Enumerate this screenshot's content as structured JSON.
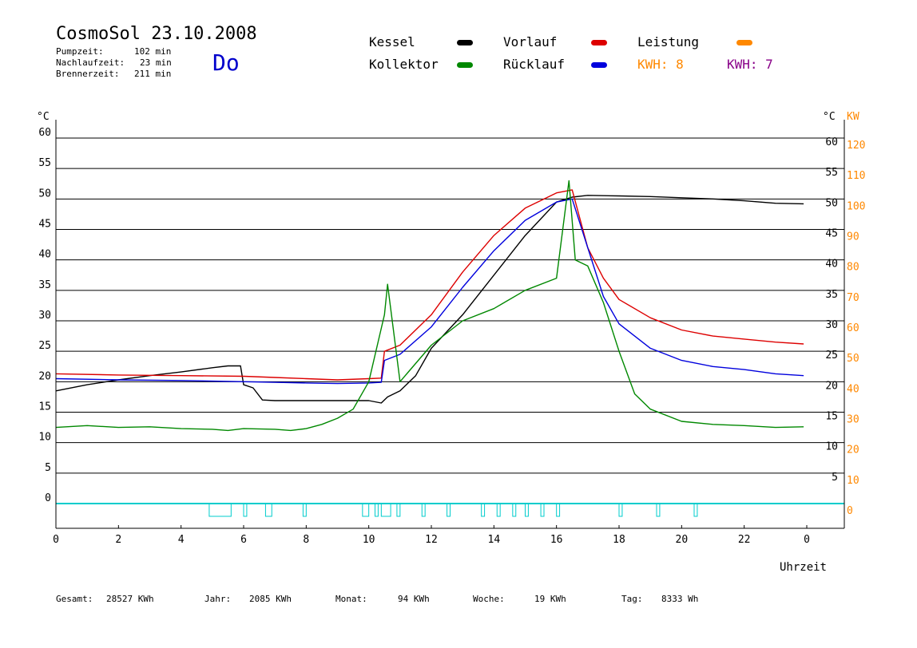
{
  "header": {
    "title": "CosmoSol 23.10.2008",
    "weekday": "Do",
    "info": [
      {
        "label": "Pumpzeit:",
        "value": "102 min"
      },
      {
        "label": "Nachlaufzeit:",
        "value": "23 min"
      },
      {
        "label": "Brennerzeit:",
        "value": "211 min"
      }
    ]
  },
  "legend": {
    "items": [
      {
        "label": "Kessel",
        "color": "#000000"
      },
      {
        "label": "Vorlauf",
        "color": "#dd0000"
      },
      {
        "label": "Leistung",
        "color": "#ff8800"
      },
      {
        "label": "Kollektor",
        "color": "#008800"
      },
      {
        "label": "Rücklauf",
        "color": "#0000dd"
      }
    ],
    "kwh": [
      {
        "label": "KWH: 8",
        "color": "#ff8800"
      },
      {
        "label": "KWH: 7",
        "color": "#880088"
      }
    ]
  },
  "footer": [
    {
      "label": "Gesamt:",
      "value": "28527 KWh"
    },
    {
      "label": "Jahr:",
      "value": "2085 KWh"
    },
    {
      "label": "Monat:",
      "value": "94 KWh"
    },
    {
      "label": "Woche:",
      "value": "19 KWh"
    },
    {
      "label": "Tag:",
      "value": "8333 Wh"
    }
  ],
  "chart_data": {
    "type": "line",
    "xlabel": "Uhrzeit",
    "y_left_unit": "°C",
    "y_right_unit_temp": "°C",
    "y_right_unit_power": "KW",
    "xlim": [
      0,
      24
    ],
    "ylim": [
      0,
      60
    ],
    "x_ticks": [
      "0",
      "2",
      "4",
      "6",
      "8",
      "10",
      "12",
      "14",
      "16",
      "18",
      "20",
      "22",
      "0"
    ],
    "y_left_ticks": [
      "0",
      "5",
      "10",
      "15",
      "20",
      "25",
      "30",
      "35",
      "40",
      "45",
      "50",
      "55",
      "60"
    ],
    "y_right_temp_ticks": [
      "5",
      "10",
      "15",
      "20",
      "25",
      "30",
      "35",
      "40",
      "45",
      "50",
      "55",
      "60"
    ],
    "y_right_power_ticks": [
      "0",
      "10",
      "20",
      "30",
      "40",
      "50",
      "60",
      "70",
      "80",
      "90",
      "100",
      "110",
      "120"
    ],
    "grid": true,
    "series": [
      {
        "name": "Kessel",
        "color": "#000000",
        "x": [
          0,
          1,
          2,
          3,
          4,
          5,
          5.5,
          5.9,
          6.0,
          6.3,
          6.6,
          7.0,
          8.0,
          9.0,
          10.0,
          10.4,
          10.6,
          11.0,
          11.5,
          12.0,
          13.0,
          14.0,
          15.0,
          16.0,
          16.5,
          17.0,
          18.0,
          19.0,
          20.0,
          21.0,
          22.0,
          23.0,
          23.9
        ],
        "values": [
          18.5,
          19.5,
          20.3,
          21.0,
          21.6,
          22.3,
          22.6,
          22.6,
          19.5,
          19.0,
          17.0,
          16.9,
          16.9,
          16.9,
          16.9,
          16.5,
          17.5,
          18.5,
          21.0,
          25.5,
          31.0,
          37.5,
          44.0,
          49.5,
          50.3,
          50.6,
          50.5,
          50.4,
          50.2,
          50.0,
          49.7,
          49.3,
          49.2
        ]
      },
      {
        "name": "Vorlauf",
        "color": "#dd0000",
        "x": [
          0,
          2,
          4,
          6,
          7,
          8,
          9,
          10,
          10.4,
          10.5,
          11.0,
          12.0,
          13.0,
          14.0,
          15.0,
          16.0,
          16.5,
          17.0,
          17.5,
          18.0,
          19.0,
          20.0,
          21.0,
          22.0,
          23.0,
          23.9
        ],
        "values": [
          21.3,
          21.1,
          21.0,
          20.9,
          20.7,
          20.5,
          20.3,
          20.5,
          20.6,
          25.0,
          26.0,
          31.0,
          38.0,
          44.0,
          48.5,
          51.0,
          51.5,
          42.0,
          37.0,
          33.5,
          30.5,
          28.5,
          27.5,
          27.0,
          26.5,
          26.2
        ]
      },
      {
        "name": "Rücklauf",
        "color": "#0000dd",
        "x": [
          0,
          2,
          4,
          6,
          7,
          8,
          9,
          10,
          10.4,
          10.5,
          11.0,
          12.0,
          13.0,
          14.0,
          15.0,
          16.0,
          16.5,
          17.0,
          17.5,
          18.0,
          19.0,
          20.0,
          21.0,
          22.0,
          23.0,
          23.9
        ],
        "values": [
          20.5,
          20.3,
          20.2,
          20.0,
          19.9,
          19.8,
          19.7,
          19.8,
          19.9,
          23.5,
          24.5,
          29.0,
          35.5,
          41.5,
          46.5,
          49.5,
          50.0,
          42.0,
          34.0,
          29.5,
          25.5,
          23.5,
          22.5,
          22.0,
          21.3,
          21.0
        ]
      },
      {
        "name": "Kollektor",
        "color": "#008800",
        "x": [
          0,
          1,
          2,
          3,
          4,
          5,
          5.5,
          6,
          7,
          7.5,
          8,
          8.5,
          9,
          9.5,
          10.0,
          10.5,
          10.6,
          11.0,
          12.0,
          13.0,
          14.0,
          15.0,
          16.0,
          16.4,
          16.6,
          17.0,
          17.5,
          18.0,
          18.5,
          19.0,
          20.0,
          21.0,
          22.0,
          23.0,
          23.9
        ],
        "values": [
          12.5,
          12.8,
          12.5,
          12.6,
          12.3,
          12.2,
          12.0,
          12.3,
          12.2,
          12.0,
          12.3,
          13.0,
          14.0,
          15.5,
          20.0,
          31.0,
          36.0,
          20.0,
          26.0,
          30.0,
          32.0,
          35.0,
          37.0,
          53.0,
          40.0,
          39.0,
          33.0,
          25.0,
          18.0,
          15.5,
          13.5,
          13.0,
          12.8,
          12.5,
          12.6
        ]
      }
    ],
    "burner_intervals": [
      [
        4.9,
        5.6
      ],
      [
        6.0,
        6.1
      ],
      [
        6.7,
        6.9
      ],
      [
        7.9,
        8.0
      ],
      [
        9.8,
        10.0
      ],
      [
        10.2,
        10.3
      ],
      [
        10.4,
        10.7
      ],
      [
        10.9,
        11.0
      ],
      [
        11.7,
        11.8
      ],
      [
        12.5,
        12.6
      ],
      [
        13.6,
        13.7
      ],
      [
        14.1,
        14.2
      ],
      [
        14.6,
        14.7
      ],
      [
        15.0,
        15.1
      ],
      [
        15.5,
        15.6
      ],
      [
        16.0,
        16.1
      ],
      [
        18.0,
        18.1
      ],
      [
        19.2,
        19.3
      ],
      [
        20.4,
        20.5
      ]
    ]
  }
}
